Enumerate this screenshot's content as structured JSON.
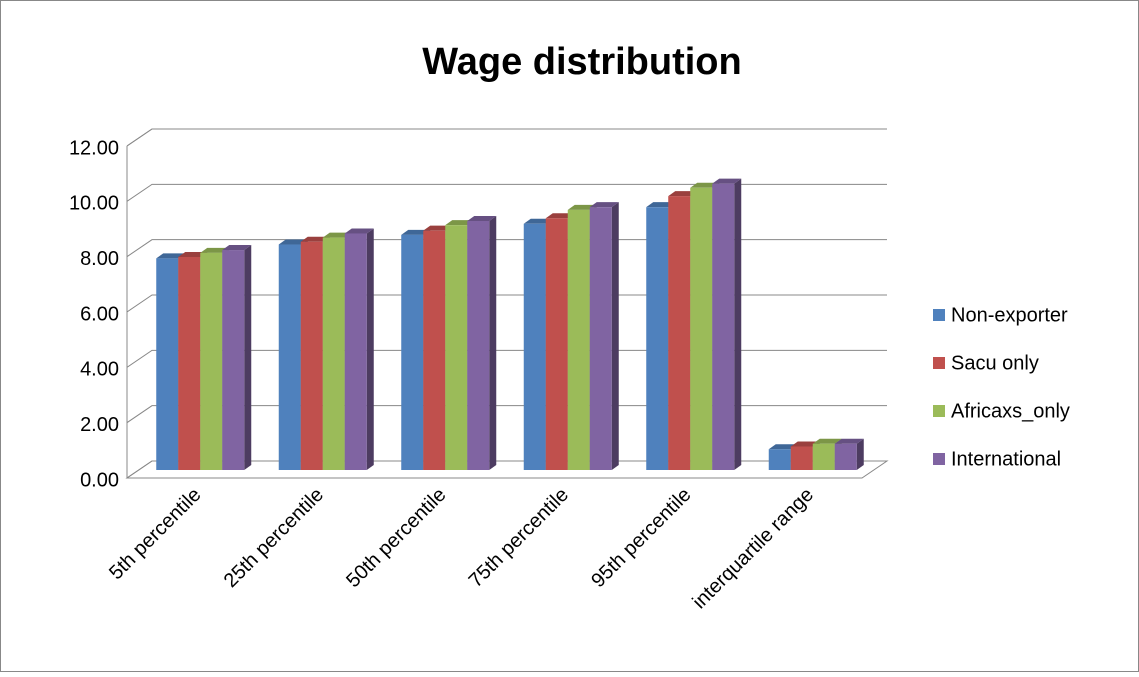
{
  "chart_data": {
    "type": "bar3d",
    "title": "Wage distribution",
    "categories": [
      "5th percentile",
      "25th percentile",
      "50th percentile",
      "75th percentile",
      "95th percentile",
      "interquartile range"
    ],
    "series": [
      {
        "name": "Non-exporter",
        "color": "#4f81bd",
        "values": [
          7.65,
          8.15,
          8.5,
          8.9,
          9.5,
          0.75
        ]
      },
      {
        "name": "Sacu only",
        "color": "#c0504d",
        "values": [
          7.7,
          8.25,
          8.65,
          9.1,
          9.9,
          0.85
        ]
      },
      {
        "name": "Africaxs_only",
        "color": "#9bbb59",
        "values": [
          7.85,
          8.4,
          8.85,
          9.4,
          10.2,
          0.95
        ]
      },
      {
        "name": "International",
        "color": "#8064a2",
        "values": [
          7.95,
          8.55,
          9.0,
          9.5,
          10.35,
          0.95
        ]
      }
    ],
    "ylim": [
      0,
      12
    ],
    "yticks": [
      {
        "value": 0,
        "label": "0.00"
      },
      {
        "value": 2,
        "label": "2.00"
      },
      {
        "value": 4,
        "label": "4.00"
      },
      {
        "value": 6,
        "label": "6.00"
      },
      {
        "value": 8,
        "label": "8.00"
      },
      {
        "value": 10,
        "label": "10.00"
      },
      {
        "value": 12,
        "label": "12.00"
      }
    ],
    "grid": true,
    "legend": "right"
  }
}
